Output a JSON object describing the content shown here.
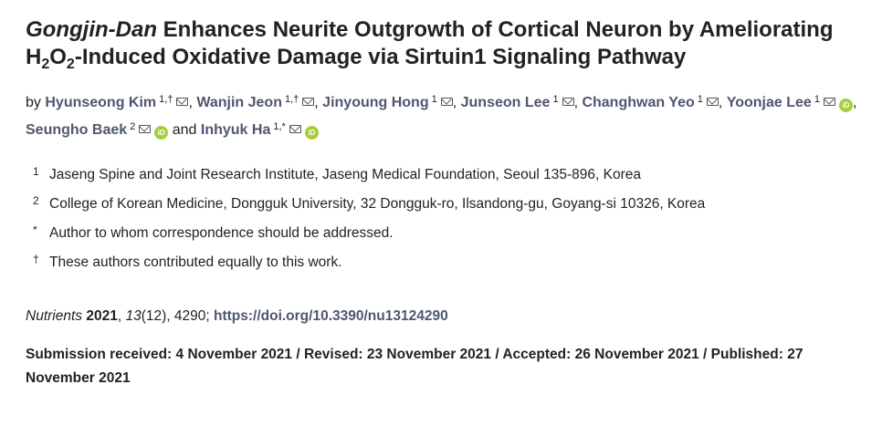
{
  "title": {
    "italic_part": "Gongjin-Dan",
    "part1": " Enhances Neurite Outgrowth of Cortical Neuron by Ameliorating H",
    "sub1": "2",
    "mid": "O",
    "sub2": "2",
    "part2": "-Induced Oxidative Damage via Sirtuin1 Signaling Pathway"
  },
  "authors": {
    "by": "by",
    "and": "and",
    "list": [
      {
        "name": "Hyunseong Kim",
        "sup": "1,†"
      },
      {
        "name": "Wanjin Jeon",
        "sup": "1,†"
      },
      {
        "name": "Jinyoung Hong",
        "sup": "1"
      },
      {
        "name": "Junseon Lee",
        "sup": "1"
      },
      {
        "name": "Changhwan Yeo",
        "sup": "1"
      },
      {
        "name": "Yoonjae Lee",
        "sup": "1"
      },
      {
        "name": "Seungho Baek",
        "sup": "2"
      },
      {
        "name": "Inhyuk Ha",
        "sup": "1,*"
      }
    ]
  },
  "affiliations": [
    {
      "num": "1",
      "text": "Jaseng Spine and Joint Research Institute, Jaseng Medical Foundation, Seoul 135-896, Korea"
    },
    {
      "num": "2",
      "text": "College of Korean Medicine, Dongguk University, 32 Dongguk-ro, Ilsandong-gu, Goyang-si 10326, Korea"
    },
    {
      "num": "*",
      "text": "Author to whom correspondence should be addressed."
    },
    {
      "num": "†",
      "text": "These authors contributed equally to this work."
    }
  ],
  "citation": {
    "journal": "Nutrients",
    "year": "2021",
    "volume": "13",
    "issue": "(12), 4290; ",
    "doi": "https://doi.org/10.3390/nu13124290"
  },
  "dates": "Submission received: 4 November 2021 / Revised: 23 November 2021 / Accepted: 26 November 2021 / Published: 27 November 2021",
  "icons": {
    "orcid": "iD"
  }
}
